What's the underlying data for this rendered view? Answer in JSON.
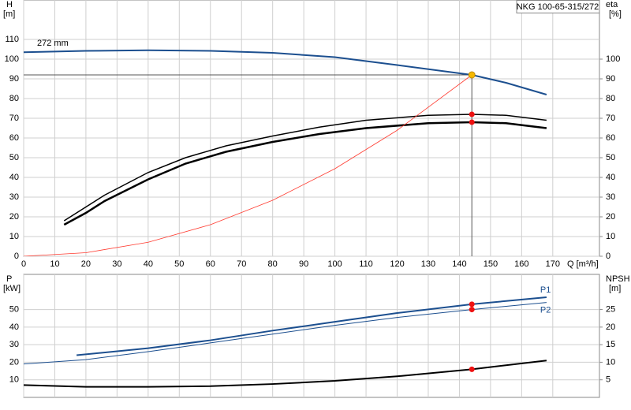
{
  "chart_data": [
    {
      "type": "line",
      "title": "NKG 100-65-315/272",
      "ylabel": "H",
      "ylabel_unit": "[m]",
      "y2label": "eta",
      "y2label_unit": "[%]",
      "xlabel": "Q [m³/h]",
      "annotation": "272 mm",
      "xlim": [
        0,
        185
      ],
      "xticks": [
        0,
        10,
        20,
        30,
        40,
        50,
        60,
        70,
        80,
        90,
        100,
        110,
        120,
        130,
        140,
        150,
        160,
        170
      ],
      "ylim": [
        0,
        130
      ],
      "yticks": [
        0,
        10,
        20,
        30,
        40,
        50,
        60,
        70,
        80,
        90,
        100,
        110
      ],
      "y2lim": [
        0,
        130
      ],
      "y2ticks": [
        0,
        10,
        20,
        30,
        40,
        50,
        60,
        70,
        80,
        90,
        100
      ],
      "grid": true,
      "series": [
        {
          "color": "#1c4f8f",
          "width": 2,
          "x": [
            0,
            20,
            40,
            60,
            80,
            100,
            120,
            144,
            155,
            168
          ],
          "values": [
            103.5,
            104.2,
            104.5,
            104.2,
            103.2,
            101,
            97,
            92,
            88,
            82
          ]
        },
        {
          "color": "#000000",
          "width": 1.5,
          "axis": "y2",
          "x": [
            13,
            26,
            40,
            52,
            65,
            80,
            95,
            110,
            130,
            144,
            155,
            168
          ],
          "values": [
            18,
            31,
            42.5,
            50,
            56,
            61,
            65.5,
            69,
            71.5,
            72,
            71.5,
            69
          ]
        },
        {
          "color": "#000000",
          "width": 2.5,
          "axis": "y2",
          "x": [
            13,
            20,
            26,
            40,
            52,
            65,
            80,
            95,
            110,
            130,
            144,
            155,
            168
          ],
          "values": [
            16,
            22,
            28,
            39,
            47,
            53,
            58,
            62,
            65,
            67.5,
            68,
            67.5,
            65
          ]
        },
        {
          "color": "#ff3b30",
          "width": 0.8,
          "x": [
            0,
            20,
            40,
            60,
            80,
            100,
            120,
            144
          ],
          "values": [
            0,
            1.8,
            7.1,
            16,
            28.4,
            44.4,
            63.9,
            92
          ]
        }
      ],
      "duty_point": {
        "x": 144,
        "y": 92,
        "color": "#f5b800"
      },
      "markers": [
        {
          "x": 144,
          "y": 72,
          "color": "#ee1111"
        },
        {
          "x": 144,
          "y": 68,
          "color": "#ee1111"
        }
      ]
    },
    {
      "type": "line",
      "ylabel": "P",
      "ylabel_unit": "[kW]",
      "y2label": "NPSH",
      "y2label_unit": "[m]",
      "xlim": [
        0,
        185
      ],
      "xticks": [
        0,
        10,
        20,
        30,
        40,
        50,
        60,
        70,
        80,
        90,
        100,
        110,
        120,
        130,
        140,
        150,
        160,
        170
      ],
      "ylim": [
        0,
        70
      ],
      "yticks": [
        10,
        20,
        30,
        40,
        50
      ],
      "y2lim": [
        0,
        35
      ],
      "y2ticks": [
        5,
        10,
        15,
        20,
        25
      ],
      "grid": true,
      "series": [
        {
          "name": "P1",
          "color": "#1c4f8f",
          "width": 2,
          "x": [
            17,
            40,
            60,
            80,
            100,
            120,
            144,
            168
          ],
          "values": [
            24,
            28,
            32.5,
            38,
            43,
            48,
            53,
            57
          ]
        },
        {
          "name": "P2",
          "color": "#1c4f8f",
          "width": 1,
          "x": [
            0,
            20,
            40,
            60,
            80,
            100,
            120,
            144,
            168
          ],
          "values": [
            19,
            21.5,
            26,
            31,
            36,
            41,
            45.5,
            50,
            54
          ]
        },
        {
          "color": "#000000",
          "width": 2,
          "axis": "y2",
          "x": [
            0,
            20,
            40,
            60,
            80,
            100,
            120,
            144,
            168
          ],
          "values": [
            3.5,
            3,
            3,
            3.2,
            3.8,
            4.7,
            6,
            8,
            10.5
          ]
        }
      ],
      "markers": [
        {
          "x": 144,
          "y": 53,
          "color": "#ee1111"
        },
        {
          "x": 144,
          "y": 50,
          "color": "#ee1111"
        },
        {
          "x": 144,
          "y": 8,
          "color": "#ee1111",
          "axis": "y2"
        }
      ]
    }
  ]
}
